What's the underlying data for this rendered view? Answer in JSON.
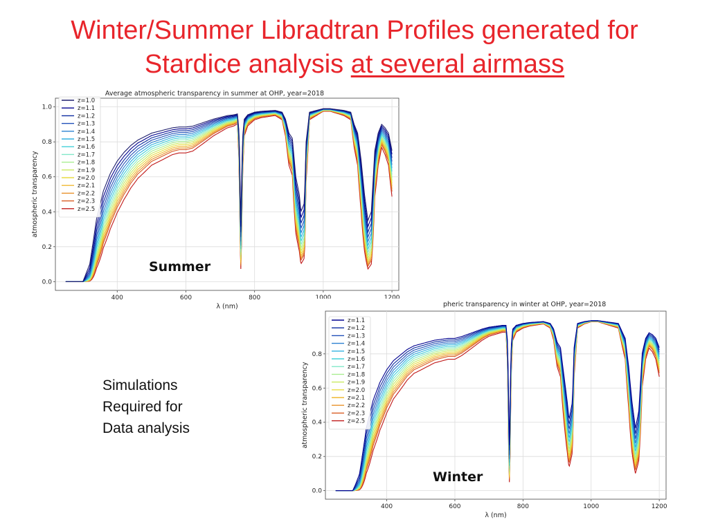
{
  "slide": {
    "title_line1": "Winter/Summer Libradtran Profiles generated for",
    "title_line2_plain": "Stardice analysis ",
    "title_line2_underlined": "at several airmass",
    "side_note": [
      "Simulations",
      "Required for",
      "Data analysis"
    ]
  },
  "chart_data": [
    {
      "type": "line",
      "season_label": "Summer",
      "title": "Average atmospheric transparency in summer at OHP, year=2018",
      "xlabel": "λ (nm)",
      "ylabel": "atmospheric transparency",
      "xlim": [
        220,
        1220
      ],
      "ylim": [
        -0.05,
        1.05
      ],
      "xticks": [
        400,
        600,
        800,
        1000,
        1200
      ],
      "yticks": [
        0.0,
        0.2,
        0.4,
        0.6,
        0.8,
        1.0
      ],
      "ytick_labels": [
        "0.0",
        "0.2",
        "0.4",
        "0.6",
        "0.8",
        "1.0"
      ],
      "grid": true,
      "legend_position": "upper-left",
      "x_range_plotted": [
        250,
        1200
      ],
      "series": [
        {
          "name": "z=1.0",
          "airmass": 1.0,
          "color": "#1e1e6e"
        },
        {
          "name": "z=1.1",
          "airmass": 1.1,
          "color": "#00008f"
        },
        {
          "name": "z=1.2",
          "airmass": 1.2,
          "color": "#0a2aa0"
        },
        {
          "name": "z=1.3",
          "airmass": 1.3,
          "color": "#1f4fb8"
        },
        {
          "name": "z=1.4",
          "airmass": 1.4,
          "color": "#2a80d0"
        },
        {
          "name": "z=1.5",
          "airmass": 1.5,
          "color": "#30b0e0"
        },
        {
          "name": "z=1.6",
          "airmass": 1.6,
          "color": "#40d0d8"
        },
        {
          "name": "z=1.7",
          "airmass": 1.7,
          "color": "#80e8c8"
        },
        {
          "name": "z=1.8",
          "airmass": 1.8,
          "color": "#a8ee90"
        },
        {
          "name": "z=1.9",
          "airmass": 1.9,
          "color": "#c8ea60"
        },
        {
          "name": "z=2.0",
          "airmass": 2.0,
          "color": "#e8dc40"
        },
        {
          "name": "z=2.1",
          "airmass": 2.1,
          "color": "#f0b830"
        },
        {
          "name": "z=2.2",
          "airmass": 2.2,
          "color": "#e89028"
        },
        {
          "name": "z=2.3",
          "airmass": 2.3,
          "color": "#d85a20"
        },
        {
          "name": "z=2.5",
          "airmass": 2.5,
          "color": "#c01818"
        }
      ],
      "reference_curve_z1": {
        "x": [
          250,
          300,
          320,
          340,
          360,
          380,
          400,
          420,
          440,
          460,
          480,
          500,
          520,
          540,
          560,
          580,
          600,
          620,
          650,
          680,
          700,
          720,
          740,
          750,
          755,
          760,
          765,
          770,
          780,
          800,
          820,
          860,
          880,
          890,
          900,
          910,
          920,
          930,
          935,
          945,
          950,
          960,
          980,
          1000,
          1020,
          1040,
          1060,
          1080,
          1090,
          1100,
          1110,
          1120,
          1130,
          1140,
          1150,
          1160,
          1170,
          1180,
          1190,
          1200
        ],
        "y": [
          0.0,
          0.0,
          0.1,
          0.36,
          0.52,
          0.62,
          0.69,
          0.74,
          0.78,
          0.81,
          0.83,
          0.85,
          0.86,
          0.87,
          0.88,
          0.885,
          0.885,
          0.89,
          0.91,
          0.93,
          0.94,
          0.95,
          0.955,
          0.96,
          0.85,
          0.35,
          0.82,
          0.93,
          0.955,
          0.97,
          0.975,
          0.98,
          0.97,
          0.93,
          0.85,
          0.82,
          0.6,
          0.5,
          0.4,
          0.45,
          0.8,
          0.97,
          0.98,
          0.99,
          0.99,
          0.985,
          0.98,
          0.97,
          0.9,
          0.85,
          0.7,
          0.5,
          0.35,
          0.4,
          0.75,
          0.85,
          0.9,
          0.88,
          0.85,
          0.75
        ]
      }
    },
    {
      "type": "line",
      "season_label": "Winter",
      "title": "pheric transparency in winter at OHP, year=2018",
      "xlabel": "λ (nm)",
      "ylabel": "atmospheric transparency",
      "xlim": [
        220,
        1220
      ],
      "ylim": [
        -0.05,
        1.05
      ],
      "xticks": [
        400,
        600,
        800,
        1000,
        1200
      ],
      "yticks": [
        0.0,
        0.2,
        0.4,
        0.6,
        0.8
      ],
      "ytick_labels": [
        "0.0",
        "0.2",
        "0.4",
        "0.6",
        "0.8"
      ],
      "grid": true,
      "legend_position": "upper-left",
      "x_range_plotted": [
        250,
        1200
      ],
      "series": [
        {
          "name": "z=1.1",
          "airmass": 1.1,
          "color": "#00008f"
        },
        {
          "name": "z=1.2",
          "airmass": 1.2,
          "color": "#0a2aa0"
        },
        {
          "name": "z=1.3",
          "airmass": 1.3,
          "color": "#1f4fb8"
        },
        {
          "name": "z=1.4",
          "airmass": 1.4,
          "color": "#2a80d0"
        },
        {
          "name": "z=1.5",
          "airmass": 1.5,
          "color": "#30b0e0"
        },
        {
          "name": "z=1.6",
          "airmass": 1.6,
          "color": "#40d0d8"
        },
        {
          "name": "z=1.7",
          "airmass": 1.7,
          "color": "#80e8c8"
        },
        {
          "name": "z=1.8",
          "airmass": 1.8,
          "color": "#a8ee90"
        },
        {
          "name": "z=1.9",
          "airmass": 1.9,
          "color": "#c8ea60"
        },
        {
          "name": "z=2.0",
          "airmass": 2.0,
          "color": "#e8dc40"
        },
        {
          "name": "z=2.1",
          "airmass": 2.1,
          "color": "#f0b830"
        },
        {
          "name": "z=2.2",
          "airmass": 2.2,
          "color": "#e89028"
        },
        {
          "name": "z=2.3",
          "airmass": 2.3,
          "color": "#d85a20"
        },
        {
          "name": "z=2.5",
          "airmass": 2.5,
          "color": "#c01818"
        }
      ],
      "reference_curve_z1": {
        "x": [
          250,
          300,
          320,
          340,
          360,
          380,
          400,
          420,
          440,
          460,
          480,
          500,
          520,
          540,
          560,
          580,
          600,
          620,
          650,
          680,
          700,
          720,
          740,
          750,
          755,
          760,
          765,
          770,
          780,
          800,
          820,
          860,
          880,
          890,
          900,
          910,
          920,
          930,
          935,
          945,
          950,
          960,
          980,
          1000,
          1020,
          1040,
          1060,
          1080,
          1090,
          1100,
          1110,
          1120,
          1130,
          1140,
          1150,
          1160,
          1170,
          1180,
          1190,
          1200
        ],
        "y": [
          0.0,
          0.0,
          0.12,
          0.4,
          0.56,
          0.66,
          0.73,
          0.78,
          0.81,
          0.84,
          0.86,
          0.87,
          0.88,
          0.89,
          0.895,
          0.9,
          0.9,
          0.91,
          0.93,
          0.95,
          0.96,
          0.965,
          0.97,
          0.97,
          0.88,
          0.3,
          0.85,
          0.95,
          0.97,
          0.98,
          0.985,
          0.99,
          0.98,
          0.95,
          0.88,
          0.85,
          0.7,
          0.55,
          0.45,
          0.55,
          0.85,
          0.98,
          0.99,
          0.995,
          0.995,
          0.99,
          0.985,
          0.98,
          0.94,
          0.9,
          0.75,
          0.55,
          0.4,
          0.5,
          0.82,
          0.9,
          0.93,
          0.92,
          0.9,
          0.85
        ]
      }
    }
  ]
}
